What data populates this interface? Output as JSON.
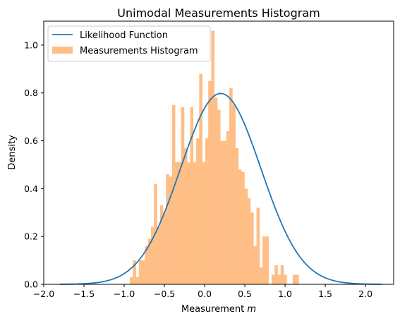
{
  "chart_data": {
    "type": "histogram",
    "title": "Unimodal Measurements Histogram",
    "xlabel_prefix": "Measurement ",
    "xlabel_var": "m",
    "ylabel": "Density",
    "xlim": [
      -2.0,
      2.35
    ],
    "ylim": [
      0.0,
      1.1
    ],
    "xticks": [
      -2.0,
      -1.5,
      -1.0,
      -0.5,
      0.0,
      0.5,
      1.0,
      1.5,
      2.0
    ],
    "xtick_labels": [
      "−2.0",
      "−1.5",
      "−1.0",
      "−0.5",
      "0.0",
      "0.5",
      "1.0",
      "1.5",
      "2.0"
    ],
    "yticks": [
      0.0,
      0.2,
      0.4,
      0.6,
      0.8,
      1.0
    ],
    "ytick_labels": [
      "0.0",
      "0.2",
      "0.4",
      "0.6",
      "0.8",
      "1.0"
    ],
    "grid": false,
    "legend_position": "upper-left",
    "histogram": {
      "name": "Measurements Histogram",
      "color": "#ffbe86",
      "bin_start": -0.93,
      "bin_width": 0.0375,
      "densities": [
        0.03,
        0.1,
        0.03,
        0.1,
        0.1,
        0.16,
        0.19,
        0.24,
        0.42,
        0.24,
        0.33,
        0.3,
        0.46,
        0.45,
        0.75,
        0.51,
        0.51,
        0.74,
        0.57,
        0.51,
        0.74,
        0.51,
        0.61,
        0.88,
        0.51,
        0.61,
        0.85,
        1.06,
        0.78,
        0.73,
        0.6,
        0.6,
        0.64,
        0.82,
        0.75,
        0.57,
        0.48,
        0.47,
        0.4,
        0.36,
        0.3,
        0.16,
        0.32,
        0.07,
        0.2,
        0.2,
        0.0,
        0.04,
        0.08,
        0.04,
        0.08,
        0.04,
        0.0,
        0.0,
        0.04,
        0.04
      ]
    },
    "series": [
      {
        "name": "Likelihood Function",
        "color": "#1f77b4",
        "mean": 0.2,
        "std": 0.5,
        "x_range": [
          -1.8,
          2.2
        ]
      }
    ]
  }
}
